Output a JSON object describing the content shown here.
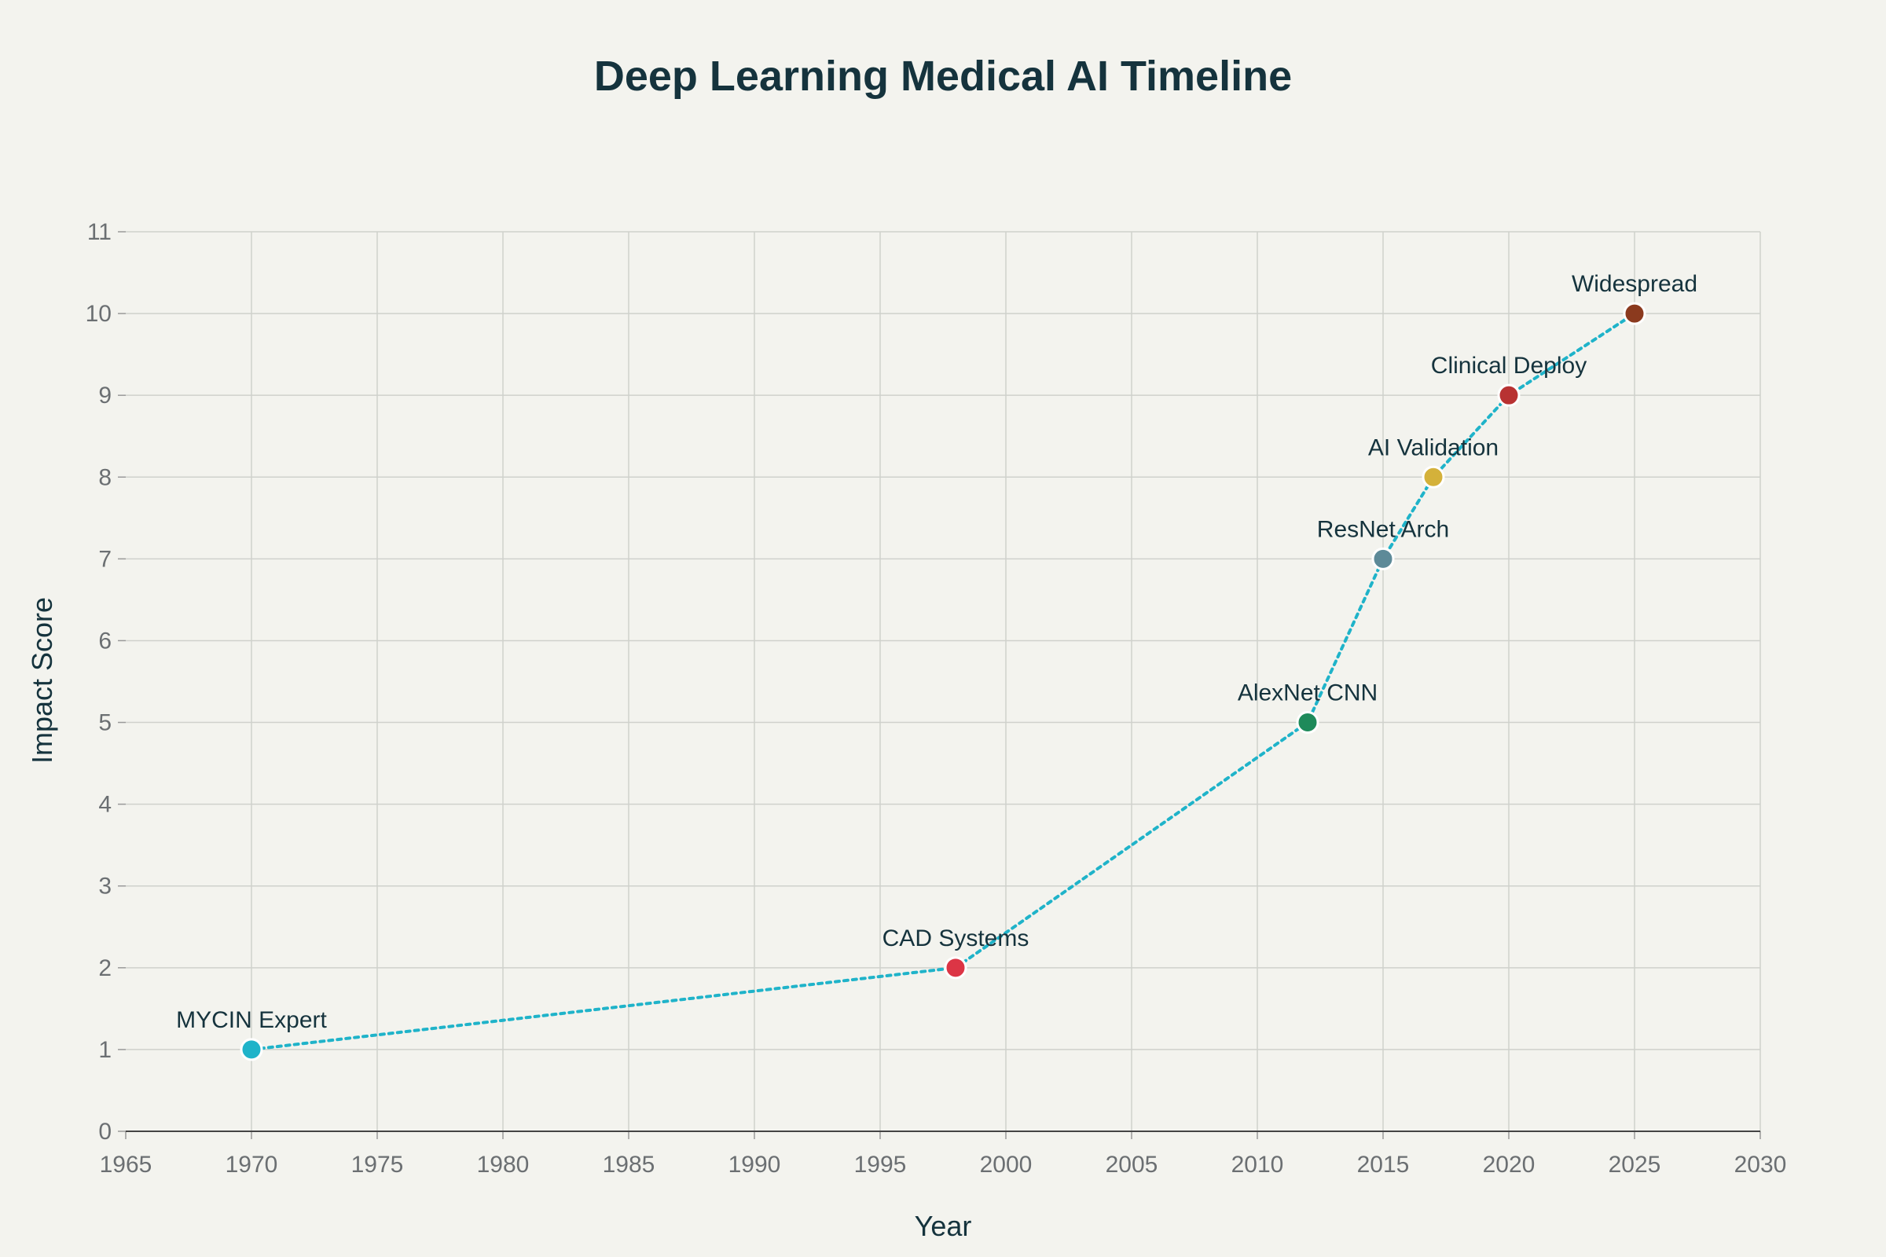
{
  "chart_data": {
    "type": "line",
    "title": "Deep Learning Medical AI Timeline",
    "xlabel": "Year",
    "ylabel": "Impact Score",
    "xlim": [
      1965,
      2030
    ],
    "ylim": [
      0,
      11
    ],
    "x_ticks": [
      1965,
      1970,
      1975,
      1980,
      1985,
      1990,
      1995,
      2000,
      2005,
      2010,
      2015,
      2020,
      2025,
      2030
    ],
    "y_ticks": [
      0,
      1,
      2,
      3,
      4,
      5,
      6,
      7,
      8,
      9,
      10,
      11
    ],
    "grid": true,
    "line_style": "dotted",
    "line_color": "#1fb3c9",
    "points": [
      {
        "x": 1970,
        "y": 1,
        "label": "MYCIN Expert",
        "color": "#1fb3c9"
      },
      {
        "x": 1998,
        "y": 2,
        "label": "CAD Systems",
        "color": "#dc3545"
      },
      {
        "x": 2012,
        "y": 5,
        "label": "AlexNet CNN",
        "color": "#1e8a5a"
      },
      {
        "x": 2015,
        "y": 7,
        "label": "ResNet Arch",
        "color": "#5d8a98"
      },
      {
        "x": 2017,
        "y": 8,
        "label": "AI Validation",
        "color": "#d4b13a"
      },
      {
        "x": 2020,
        "y": 9,
        "label": "Clinical Deploy",
        "color": "#b83232"
      },
      {
        "x": 2025,
        "y": 10,
        "label": "Widespread",
        "color": "#8b3a1e"
      }
    ]
  }
}
